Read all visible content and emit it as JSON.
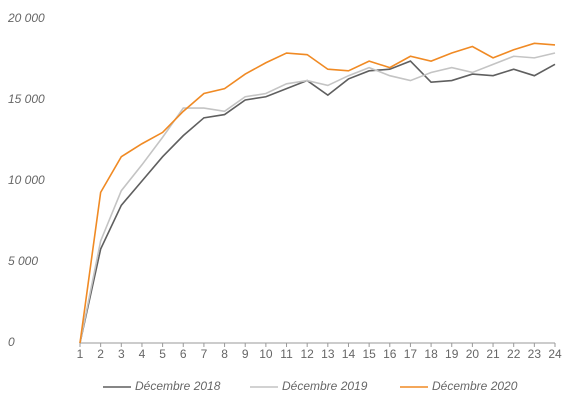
{
  "chart_data": {
    "type": "line",
    "categories": [
      "1",
      "2",
      "3",
      "4",
      "5",
      "6",
      "7",
      "8",
      "9",
      "10",
      "11",
      "12",
      "13",
      "14",
      "15",
      "16",
      "17",
      "18",
      "19",
      "20",
      "21",
      "22",
      "23",
      "24"
    ],
    "series": [
      {
        "name": "Décembre 2018",
        "color": "#5f5f5f",
        "values": [
          0,
          5800,
          8500,
          10000,
          11500,
          12800,
          13900,
          14100,
          15000,
          15200,
          15700,
          16200,
          15300,
          16300,
          16800,
          16900,
          17400,
          16100,
          16200,
          16600,
          16500,
          16900,
          16500,
          17200
        ]
      },
      {
        "name": "Décembre 2019",
        "color": "#c4c4c4",
        "values": [
          0,
          6300,
          9400,
          11000,
          12700,
          14500,
          14500,
          14300,
          15200,
          15400,
          16000,
          16200,
          15900,
          16500,
          17000,
          16500,
          16200,
          16700,
          17000,
          16700,
          17200,
          17700,
          17600,
          17900
        ]
      },
      {
        "name": "Décembre 2020",
        "color": "#f08a24",
        "values": [
          0,
          9300,
          11500,
          12300,
          13000,
          14300,
          15400,
          15700,
          16600,
          17300,
          17900,
          17800,
          16900,
          16800,
          17400,
          17000,
          17700,
          17400,
          17900,
          18300,
          17600,
          18100,
          18500,
          18400
        ]
      }
    ],
    "ylim": [
      0,
      20000
    ],
    "yticks": [
      {
        "value": 0,
        "label": "0"
      },
      {
        "value": 5000,
        "label": "5 000"
      },
      {
        "value": 10000,
        "label": "10 000"
      },
      {
        "value": 15000,
        "label": "15 000"
      },
      {
        "value": 20000,
        "label": "20 000"
      }
    ],
    "legend": "bottom"
  }
}
